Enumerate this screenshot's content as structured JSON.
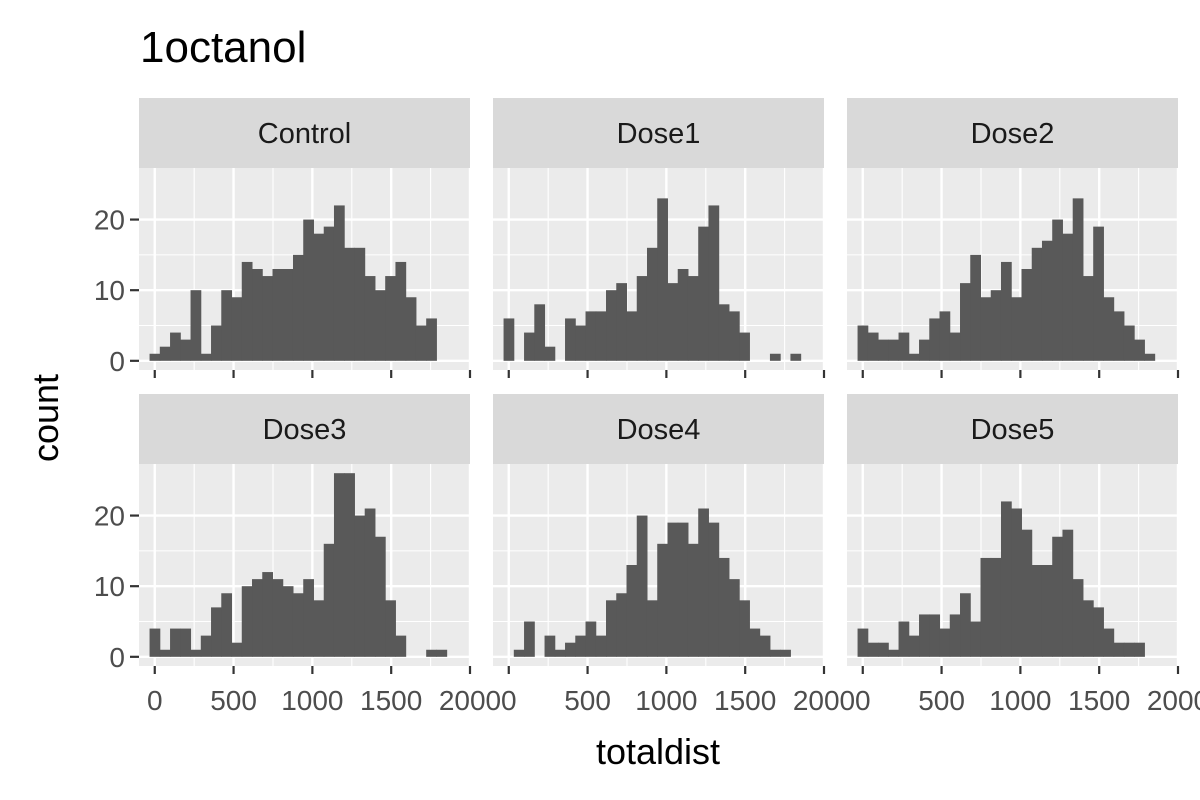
{
  "chart_data": {
    "type": "bar",
    "subtype": "faceted-histogram",
    "title": "1octanol",
    "xlabel": "totaldist",
    "ylabel": "count",
    "xlim": [
      -100,
      2000
    ],
    "ylim": [
      -1.3,
      27.3
    ],
    "x_ticks": [
      0,
      500,
      1000,
      1500,
      2000
    ],
    "x_tick_labels": [
      "0",
      "500",
      "1000",
      "1500",
      "2000"
    ],
    "y_ticks": [
      0,
      10,
      20
    ],
    "y_tick_labels": [
      "0",
      "10",
      "20"
    ],
    "bin_width": 65,
    "bins_start": -33,
    "bar_color": "#595959",
    "panel_color": "#ebebeb",
    "strip_color": "#d9d9d9",
    "facet_columns": 3,
    "facets": [
      {
        "name": "Control",
        "counts": [
          1,
          2,
          4,
          3,
          10,
          1,
          5,
          10,
          9,
          14,
          13,
          12,
          13,
          13,
          15,
          20,
          18,
          19,
          22,
          16,
          16,
          12,
          10,
          12,
          14,
          9,
          5,
          6,
          0
        ]
      },
      {
        "name": "Dose1",
        "counts": [
          6,
          0,
          4,
          8,
          2,
          0,
          6,
          5,
          7,
          7,
          10,
          11,
          7,
          12,
          16,
          23,
          11,
          13,
          12,
          19,
          22,
          8,
          7,
          4,
          0,
          0,
          1,
          0,
          1
        ]
      },
      {
        "name": "Dose2",
        "counts": [
          5,
          4,
          3,
          3,
          4,
          1,
          3,
          6,
          7,
          4,
          11,
          15,
          9,
          10,
          14,
          9,
          13,
          16,
          17,
          20,
          18,
          23,
          12,
          19,
          9,
          7,
          5,
          3,
          1
        ]
      },
      {
        "name": "Dose3",
        "counts": [
          4,
          1,
          4,
          4,
          1,
          3,
          7,
          9,
          2,
          10,
          11,
          12,
          11,
          10,
          9,
          11,
          8,
          16,
          26,
          26,
          20,
          21,
          17,
          8,
          3,
          0,
          0,
          1,
          1
        ]
      },
      {
        "name": "Dose4",
        "counts": [
          0,
          1,
          5,
          0,
          3,
          1,
          2,
          3,
          5,
          3,
          8,
          9,
          13,
          20,
          8,
          16,
          19,
          19,
          16,
          21,
          19,
          14,
          11,
          8,
          4,
          3,
          1,
          1,
          0
        ]
      },
      {
        "name": "Dose5",
        "counts": [
          4,
          2,
          2,
          1,
          5,
          3,
          6,
          6,
          4,
          6,
          9,
          5,
          14,
          14,
          22,
          21,
          18,
          13,
          13,
          17,
          18,
          11,
          8,
          7,
          4,
          2,
          2,
          2,
          0
        ]
      }
    ]
  }
}
